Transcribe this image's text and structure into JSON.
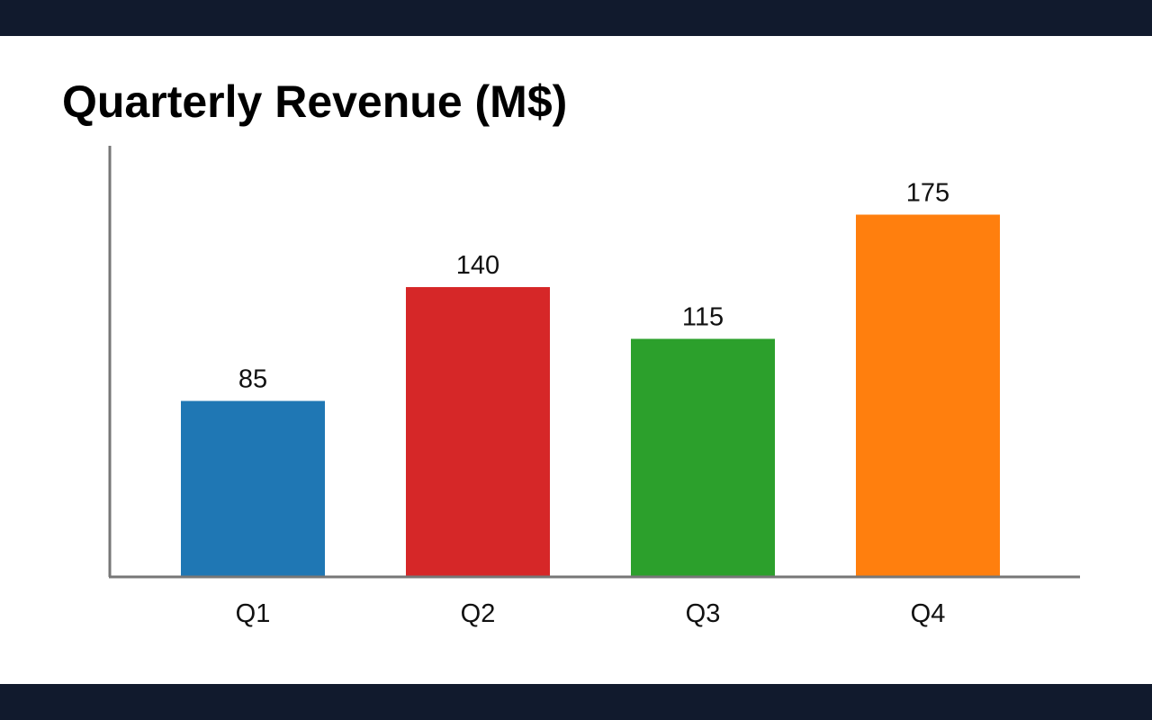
{
  "chart_data": {
    "type": "bar",
    "title": "Quarterly Revenue (M$)",
    "xlabel": "",
    "ylabel": "",
    "categories": [
      "Q1",
      "Q2",
      "Q3",
      "Q4"
    ],
    "values": [
      85,
      140,
      115,
      175
    ],
    "data_labels": [
      "85",
      "140",
      "115",
      "175"
    ],
    "colors": [
      "#1f77b4",
      "#d62728",
      "#2ca02c",
      "#ff7f0e"
    ],
    "ylim": [
      0,
      200
    ],
    "grid": false,
    "legend": "none"
  },
  "colors": {
    "frame": "#111a2d",
    "background": "#ffffff",
    "axis": "#777777"
  }
}
